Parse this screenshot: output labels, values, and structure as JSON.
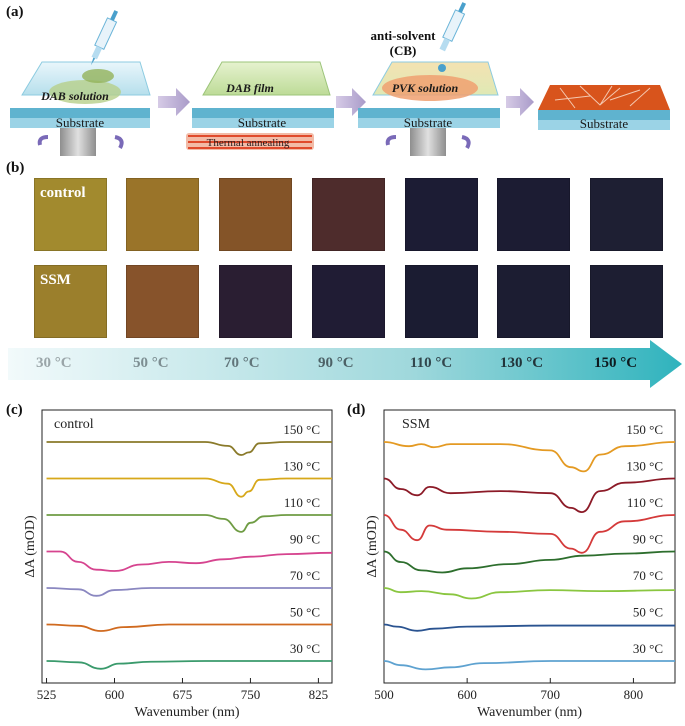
{
  "panel_labels": {
    "a": "(a)",
    "b": "(b)",
    "c": "(c)",
    "d": "(d)"
  },
  "schematic": {
    "step1_solution": "DAB solution",
    "step2_film": "DAB film",
    "step3_solution": "PVK solution",
    "substrate": "Substrate",
    "thermal": "Thermal annealing",
    "antisolvent_line1": "anti-solvent",
    "antisolvent_line2": "(CB)"
  },
  "films": {
    "row_labels": [
      "control",
      "SSM"
    ],
    "control_colors": [
      "#a28a2e",
      "#9a7429",
      "#845428",
      "#4e2c2c",
      "#1c1c34",
      "#1c1c33",
      "#1e1f33"
    ],
    "ssm_colors": [
      "#9b7f2c",
      "#87532b",
      "#2a1e32",
      "#201c34",
      "#1b1c32",
      "#1c1d32",
      "#1d1e32"
    ]
  },
  "temperature_bar": {
    "labels": [
      "30 °C",
      "50 °C",
      "70 °C",
      "90 °C",
      "110 °C",
      "130 °C",
      "150 °C"
    ],
    "label_colors": [
      "#9aa5a8",
      "#7d8e92",
      "#62767b",
      "#4c6166",
      "#32474d",
      "#22343a",
      "#0e1b20"
    ]
  },
  "chart_data": [
    {
      "type": "line",
      "panel": "(c)",
      "title": "control",
      "xlabel": "Wavenumber (nm)",
      "ylabel": "ΔA (mOD)",
      "xlim": [
        520,
        840
      ],
      "xticks": [
        525,
        600,
        675,
        750,
        825
      ],
      "series": [
        {
          "name": "150 °C",
          "color": "#8a7a2a",
          "x": [
            525,
            600,
            700,
            725,
            740,
            748,
            760,
            790,
            840
          ],
          "y": [
            0,
            0,
            0,
            -1.5,
            -5,
            -4,
            -0.5,
            0,
            0
          ]
        },
        {
          "name": "130 °C",
          "color": "#d7a81a",
          "x": [
            525,
            600,
            700,
            725,
            740,
            748,
            760,
            790,
            840
          ],
          "y": [
            0,
            0,
            0,
            -2,
            -7,
            -5,
            -0.5,
            0,
            0
          ]
        },
        {
          "name": "110 °C",
          "color": "#6f9c44",
          "x": [
            525,
            600,
            700,
            720,
            740,
            750,
            765,
            790,
            840
          ],
          "y": [
            0,
            0,
            0,
            -1.5,
            -6.5,
            -3,
            -0.5,
            0,
            0
          ]
        },
        {
          "name": "90 °C",
          "color": "#d6448f",
          "x": [
            525,
            540,
            560,
            580,
            600,
            630,
            660,
            690,
            720,
            750,
            790,
            840
          ],
          "y": [
            0,
            0,
            -4,
            -7,
            -7.5,
            -5,
            -4,
            -4.5,
            -3,
            -2,
            -1,
            -0.5
          ]
        },
        {
          "name": "70 °C",
          "color": "#8a87c0",
          "x": [
            525,
            560,
            580,
            600,
            640,
            700,
            840
          ],
          "y": [
            0,
            -0.5,
            -3,
            -0.8,
            0,
            0,
            0
          ]
        },
        {
          "name": "50 °C",
          "color": "#d06a1f",
          "x": [
            525,
            560,
            585,
            610,
            660,
            700,
            840
          ],
          "y": [
            0,
            -0.5,
            -2.5,
            -1,
            0,
            0,
            0
          ]
        },
        {
          "name": "30 °C",
          "color": "#3a9a6c",
          "x": [
            525,
            560,
            585,
            605,
            640,
            700,
            840
          ],
          "y": [
            0,
            -0.5,
            -3,
            -1,
            -0.3,
            0,
            0
          ]
        }
      ]
    },
    {
      "type": "line",
      "panel": "(d)",
      "title": "SSM",
      "xlabel": "Wavenumber (nm)",
      "ylabel": "ΔA (mOD)",
      "xlim": [
        500,
        850
      ],
      "xticks": [
        500,
        600,
        700,
        800
      ],
      "series": [
        {
          "name": "150 °C",
          "color": "#e49a23",
          "x": [
            500,
            530,
            545,
            560,
            580,
            640,
            700,
            725,
            740,
            760,
            790,
            850
          ],
          "y": [
            0,
            -2,
            -1,
            -2.5,
            -1,
            -1,
            -4,
            -12,
            -14,
            -6,
            -2,
            0
          ]
        },
        {
          "name": "130 °C",
          "color": "#8c1a27",
          "x": [
            500,
            520,
            540,
            555,
            580,
            640,
            700,
            725,
            738,
            760,
            790,
            850
          ],
          "y": [
            0,
            -5,
            -8,
            -4,
            -7,
            -6,
            -7,
            -14,
            -16,
            -6,
            -2,
            0
          ]
        },
        {
          "name": "110 °C",
          "color": "#d43a3a",
          "x": [
            500,
            520,
            540,
            555,
            575,
            640,
            700,
            725,
            738,
            760,
            790,
            850
          ],
          "y": [
            0,
            -7,
            -12,
            -5,
            -7,
            -8,
            -9,
            -16,
            -18,
            -8,
            -3,
            0
          ]
        },
        {
          "name": "90 °C",
          "color": "#2d6e2d",
          "x": [
            500,
            520,
            545,
            570,
            600,
            650,
            700,
            740,
            790,
            850
          ],
          "y": [
            0,
            -5,
            -9,
            -10,
            -8,
            -6,
            -4,
            -2,
            -1,
            0
          ]
        },
        {
          "name": "70 °C",
          "color": "#8ac640",
          "x": [
            500,
            520,
            545,
            580,
            605,
            640,
            700,
            760,
            850
          ],
          "y": [
            0,
            -2,
            -1.5,
            -3,
            -5,
            -2,
            -1,
            -1.5,
            -1
          ]
        },
        {
          "name": "50 °C",
          "color": "#2a5390",
          "x": [
            500,
            515,
            540,
            560,
            600,
            700,
            850
          ],
          "y": [
            0,
            -1,
            -3,
            -2,
            -1,
            -0.5,
            -0.5
          ]
        },
        {
          "name": "30 °C",
          "color": "#5ea2d0",
          "x": [
            500,
            520,
            550,
            580,
            620,
            700,
            850
          ],
          "y": [
            0,
            -2,
            -4,
            -3,
            -1,
            0,
            0
          ]
        }
      ]
    }
  ]
}
